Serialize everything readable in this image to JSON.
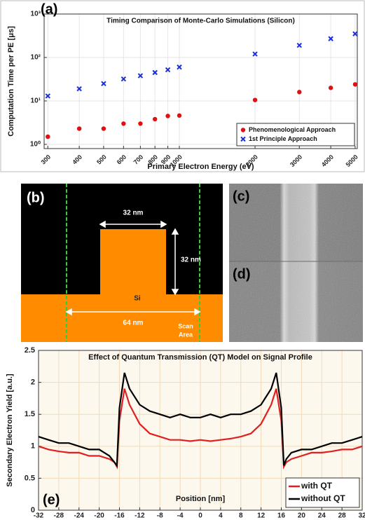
{
  "chart_data": [
    {
      "type": "scatter",
      "panel_label": "(a)",
      "title": "Timing Comparison of Monte-Carlo Simulations (Silicon)",
      "xlabel": "Primary Electron Energy (eV)",
      "ylabel": "Computation Time per PE [μs]",
      "xlog": true,
      "ylog": true,
      "grid": true,
      "legend": "lower right",
      "x": [
        300,
        400,
        500,
        600,
        700,
        800,
        900,
        1000,
        2000,
        3000,
        4000,
        5000
      ],
      "xlim": [
        290,
        5100
      ],
      "xticks": [
        300,
        400,
        500,
        600,
        700,
        800,
        900,
        1000,
        2000,
        3000,
        4000,
        5000
      ],
      "ylim": [
        0.8,
        1000
      ],
      "yticks": [
        {
          "value": 1,
          "label": "10⁰"
        },
        {
          "value": 10,
          "label": "10¹"
        },
        {
          "value": 100,
          "label": "10²"
        },
        {
          "value": 1000,
          "label": "10³"
        }
      ],
      "series": [
        {
          "name": "Phenomenological Approach",
          "color": "#e01010",
          "marker": "o",
          "values": [
            1.5,
            2.3,
            2.3,
            3.0,
            3.0,
            3.8,
            4.5,
            4.6,
            10.5,
            16,
            20,
            24
          ]
        },
        {
          "name": "1st Principle Approach",
          "color": "#1a2ee0",
          "marker": "x",
          "values": [
            13,
            19,
            25,
            32,
            38,
            45,
            52,
            60,
            120,
            190,
            270,
            350
          ]
        }
      ]
    },
    {
      "type": "line",
      "panel_label": "(e)",
      "title": "Effect of Quantum Transmission (QT) Model on Signal Profile",
      "xlabel": "Position [nm]",
      "ylabel": "Secondary Electron Yield [a.u.]",
      "grid": true,
      "legend": "lower right",
      "x": [
        -32,
        -30,
        -28,
        -26,
        -24,
        -22,
        -20,
        -18,
        -17,
        -16.5,
        -16,
        -15,
        -14,
        -12,
        -10,
        -8,
        -6,
        -4,
        -2,
        0,
        2,
        4,
        6,
        8,
        10,
        12,
        14,
        15,
        16,
        16.5,
        17,
        18,
        20,
        22,
        24,
        26,
        28,
        30,
        32
      ],
      "xlim": [
        -32,
        32
      ],
      "xticks": [
        -32,
        -28,
        -24,
        -20,
        -16,
        -12,
        -8,
        -4,
        0,
        4,
        8,
        12,
        16,
        20,
        24,
        28,
        32
      ],
      "ylim": [
        0,
        2.5
      ],
      "yticks": [
        0,
        0.5,
        1,
        1.5,
        2,
        2.5
      ],
      "series": [
        {
          "name": "with QT",
          "color": "#e02020",
          "values": [
            1.0,
            0.95,
            0.92,
            0.9,
            0.9,
            0.85,
            0.85,
            0.8,
            0.75,
            0.68,
            1.4,
            1.9,
            1.65,
            1.35,
            1.2,
            1.15,
            1.1,
            1.1,
            1.08,
            1.1,
            1.08,
            1.1,
            1.12,
            1.15,
            1.2,
            1.35,
            1.65,
            1.9,
            1.4,
            0.68,
            0.75,
            0.8,
            0.85,
            0.9,
            0.9,
            0.92,
            0.95,
            0.95,
            1.0
          ]
        },
        {
          "name": "without QT",
          "color": "#000000",
          "values": [
            1.15,
            1.1,
            1.05,
            1.05,
            1.0,
            0.95,
            0.95,
            0.85,
            0.75,
            0.7,
            1.6,
            2.15,
            1.9,
            1.65,
            1.55,
            1.5,
            1.45,
            1.5,
            1.45,
            1.45,
            1.5,
            1.45,
            1.5,
            1.5,
            1.55,
            1.65,
            1.9,
            2.15,
            1.6,
            0.7,
            0.8,
            0.9,
            0.95,
            0.95,
            1.0,
            1.05,
            1.05,
            1.1,
            1.15
          ]
        }
      ]
    }
  ],
  "diagram": {
    "panel_label": "(b)",
    "width_label": "32 nm",
    "height_label": "32 nm",
    "material": "Si",
    "scan_width_label": "64 nm",
    "scan_area_label": [
      "Scan",
      "Area"
    ]
  },
  "images": {
    "top_label": "(c)",
    "bottom_label": "(d)"
  }
}
